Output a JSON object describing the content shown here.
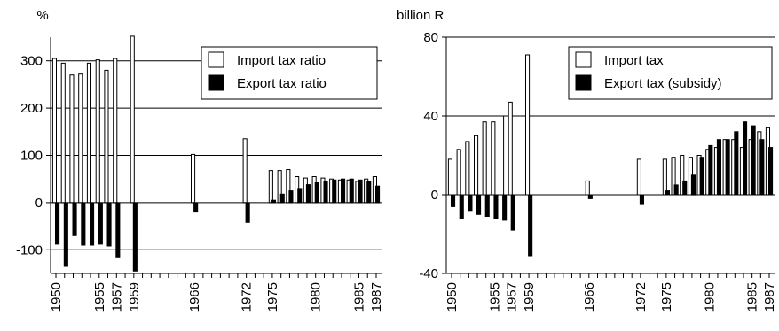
{
  "chart_data": [
    {
      "type": "bar",
      "ylabel": "%",
      "ylim": [
        -150,
        350
      ],
      "yticks": [
        -100,
        0,
        100,
        200,
        300
      ],
      "grid": "horizontal",
      "legend_position": "top-right",
      "xlim": [
        1950,
        1987
      ],
      "xtick_labels": [
        "1950",
        "1955",
        "1957",
        "1959",
        "1966",
        "1972",
        "1975",
        "1980",
        "1985",
        "1987"
      ],
      "x": [
        1950,
        1951,
        1952,
        1953,
        1954,
        1955,
        1956,
        1957,
        1958,
        1959,
        1966,
        1972,
        1975,
        1976,
        1977,
        1978,
        1979,
        1980,
        1981,
        1982,
        1983,
        1984,
        1985,
        1986,
        1987
      ],
      "series": [
        {
          "name": "Import tax ratio",
          "fill": "#ffffff",
          "values": [
            305,
            295,
            270,
            272,
            295,
            302,
            280,
            305,
            null,
            352,
            102,
            135,
            68,
            68,
            70,
            55,
            52,
            55,
            52,
            50,
            48,
            48,
            45,
            50,
            55
          ]
        },
        {
          "name": "Export tax ratio",
          "fill": "#000000",
          "values": [
            -88,
            -135,
            -70,
            -90,
            -90,
            -88,
            -92,
            -115,
            null,
            -145,
            -20,
            -42,
            5,
            18,
            25,
            30,
            38,
            42,
            45,
            48,
            50,
            50,
            48,
            45,
            35
          ]
        }
      ]
    },
    {
      "type": "bar",
      "ylabel": "billion R",
      "ylim": [
        -40,
        80
      ],
      "yticks": [
        -40,
        0,
        40,
        80
      ],
      "grid": "horizontal",
      "legend_position": "top-right",
      "xlim": [
        1950,
        1987
      ],
      "xtick_labels": [
        "1950",
        "1955",
        "1957",
        "1959",
        "1966",
        "1972",
        "1975",
        "1980",
        "1985",
        "1987"
      ],
      "x": [
        1950,
        1951,
        1952,
        1953,
        1954,
        1955,
        1956,
        1957,
        1958,
        1959,
        1966,
        1972,
        1975,
        1976,
        1977,
        1978,
        1979,
        1980,
        1981,
        1982,
        1983,
        1984,
        1985,
        1986,
        1987
      ],
      "series": [
        {
          "name": "Import tax",
          "fill": "#ffffff",
          "values": [
            18,
            23,
            27,
            30,
            37,
            37,
            40,
            47,
            null,
            71,
            7,
            18,
            18,
            19,
            20,
            19,
            20,
            23,
            24,
            28,
            28,
            24,
            28,
            32,
            34
          ]
        },
        {
          "name": "Export tax (subsidy)",
          "fill": "#000000",
          "values": [
            -6,
            -12,
            -8,
            -10,
            -11,
            -12,
            -13,
            -18,
            null,
            -31,
            -2,
            -5,
            2,
            5,
            7,
            10,
            19,
            25,
            28,
            28,
            32,
            37,
            35,
            28,
            24
          ]
        }
      ]
    }
  ]
}
